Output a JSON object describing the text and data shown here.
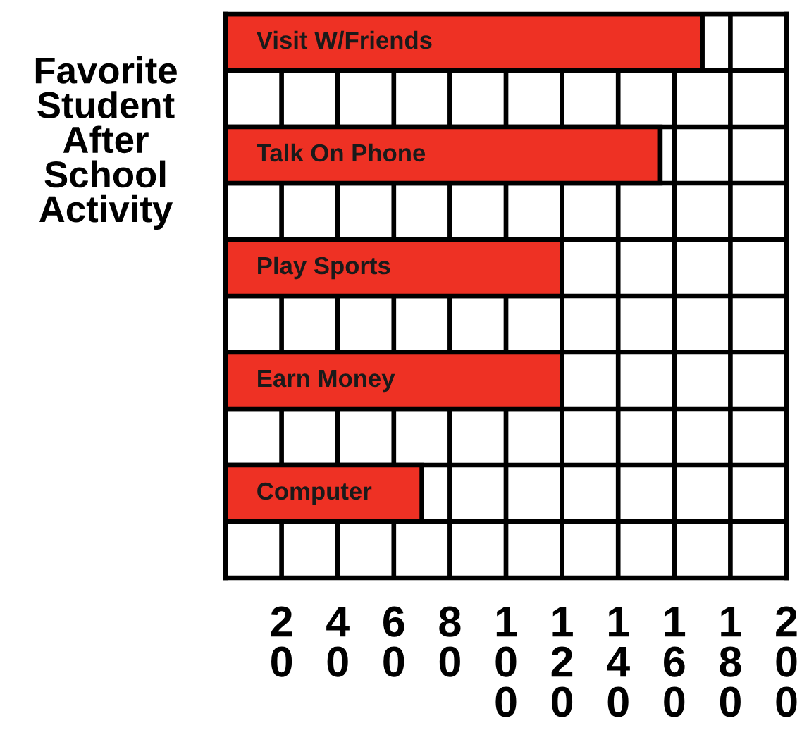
{
  "chart_data": {
    "type": "bar",
    "orientation": "horizontal",
    "title": "Favorite Student After School Activity",
    "categories": [
      "Visit W/Friends",
      "Talk On Phone",
      "Play Sports",
      "Earn Money",
      "Computer"
    ],
    "values": [
      170,
      155,
      120,
      120,
      70
    ],
    "color": "#ee3124",
    "xlim": [
      0,
      200
    ],
    "xticks": [
      20,
      40,
      60,
      80,
      100,
      120,
      140,
      160,
      180,
      200
    ],
    "grid": true
  }
}
